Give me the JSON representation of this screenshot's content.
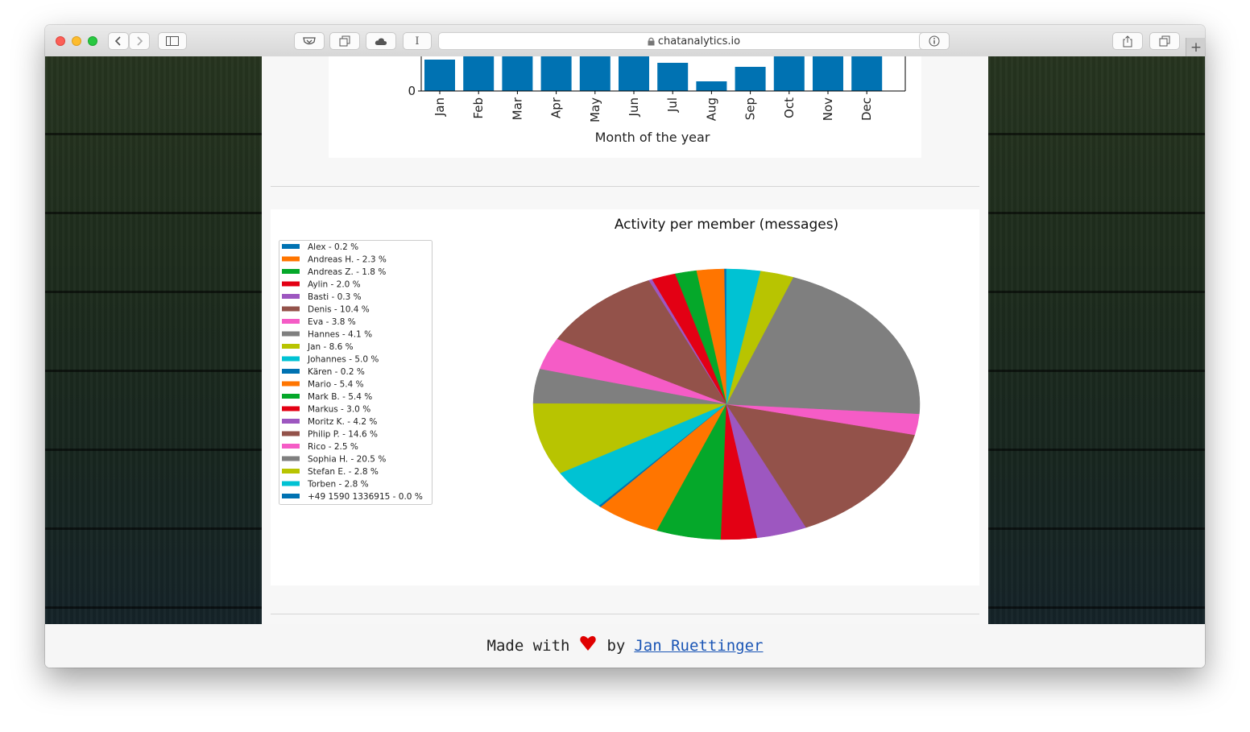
{
  "browser": {
    "url": "chatanalytics.io",
    "reader_icon": "I",
    "new_tab_icon": "+"
  },
  "monthly_chart": {
    "ytick": "0",
    "xlabel": "Month of the year",
    "chart_data": {
      "type": "bar",
      "categories": [
        "Jan",
        "Feb",
        "Mar",
        "Apr",
        "May",
        "Jun",
        "Jul",
        "Aug",
        "Sep",
        "Oct",
        "Nov",
        "Dec"
      ],
      "values": [
        39,
        55,
        55,
        55,
        55,
        55,
        35,
        12,
        30,
        55,
        55,
        55
      ],
      "xlabel": "Month of the year",
      "color": "#0072b2"
    }
  },
  "pie_chart": {
    "chart_data": {
      "type": "pie",
      "title": "Activity per member (messages)",
      "legend_location": "left",
      "slices": [
        {
          "label": "Alex - 0.2 %",
          "value": 0.2,
          "color": "#0072b2"
        },
        {
          "label": "Andreas H. - 2.3 %",
          "value": 2.3,
          "color": "#ff7500"
        },
        {
          "label": "Andreas Z. - 1.8 %",
          "value": 1.8,
          "color": "#05a82a"
        },
        {
          "label": "Aylin - 2.0 %",
          "value": 2.0,
          "color": "#e30014"
        },
        {
          "label": "Basti - 0.3 %",
          "value": 0.3,
          "color": "#9d57c0"
        },
        {
          "label": "Denis - 10.4 %",
          "value": 10.4,
          "color": "#93524a"
        },
        {
          "label": "Eva - 3.8 %",
          "value": 3.8,
          "color": "#f55cc6"
        },
        {
          "label": "Hannes - 4.1 %",
          "value": 4.1,
          "color": "#7f7f7f"
        },
        {
          "label": "Jan - 8.6 %",
          "value": 8.6,
          "color": "#b8c401"
        },
        {
          "label": "Johannes - 5.0 %",
          "value": 5.0,
          "color": "#00c2d3"
        },
        {
          "label": "Kären - 0.2 %",
          "value": 0.2,
          "color": "#0072b2"
        },
        {
          "label": "Mario - 5.4 %",
          "value": 5.4,
          "color": "#ff7500"
        },
        {
          "label": "Mark B. - 5.4 %",
          "value": 5.4,
          "color": "#05a82a"
        },
        {
          "label": "Markus - 3.0 %",
          "value": 3.0,
          "color": "#e30014"
        },
        {
          "label": "Moritz K. - 4.2 %",
          "value": 4.2,
          "color": "#9d57c0"
        },
        {
          "label": "Philip P. - 14.6 %",
          "value": 14.6,
          "color": "#93524a"
        },
        {
          "label": "Rico - 2.5 %",
          "value": 2.5,
          "color": "#f55cc6"
        },
        {
          "label": "Sophia H. - 20.5 %",
          "value": 20.5,
          "color": "#7f7f7f"
        },
        {
          "label": "Stefan E. - 2.8 %",
          "value": 2.8,
          "color": "#b8c401"
        },
        {
          "label": "Torben - 2.8 %",
          "value": 2.8,
          "color": "#00c2d3"
        },
        {
          "label": "+49 1590 1336915 - 0.0 %",
          "value": 0.0,
          "color": "#0072b2"
        }
      ]
    }
  },
  "footer": {
    "made_with": "Made with",
    "by": "by",
    "author": "Jan Ruettinger",
    "heart_color": "#e00000"
  }
}
